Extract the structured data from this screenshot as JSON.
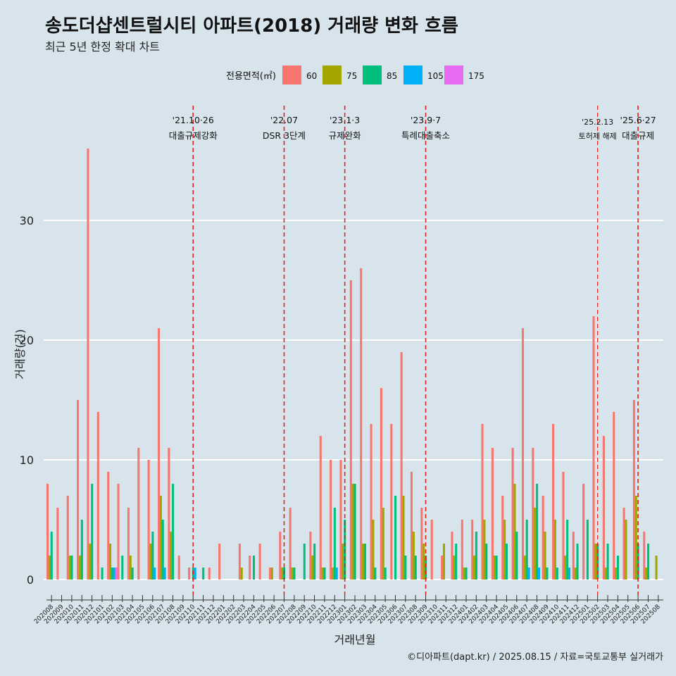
{
  "chart_data": {
    "type": "bar",
    "title": "송도더샵센트럴시티 아파트(2018) 거래량 변화 흐름",
    "subtitle": "최근 5년 한정 확대 차트",
    "xlabel": "거래년월",
    "ylabel": "거래량(건)",
    "caption": "©디아파트(dapt.kr) / 2025.08.15 / 자료=국토교통부 실거래가",
    "ylim": [
      -1.8,
      40
    ],
    "yticks": [
      0,
      10,
      20,
      30
    ],
    "grid": true,
    "legend": {
      "title": "전용면적(㎡)",
      "position": "top"
    },
    "series": [
      {
        "name": "60",
        "color": "#F8766D"
      },
      {
        "name": "75",
        "color": "#A3A500"
      },
      {
        "name": "85",
        "color": "#00BF7D"
      },
      {
        "name": "105",
        "color": "#00B0F6"
      },
      {
        "name": "175",
        "color": "#E76BF3"
      }
    ],
    "months": [
      {
        "m": "202008",
        "v": [
          8,
          2,
          4,
          0,
          0
        ]
      },
      {
        "m": "202009",
        "v": [
          6,
          0,
          0,
          0,
          0
        ]
      },
      {
        "m": "202010",
        "v": [
          7,
          2,
          2,
          0,
          0
        ]
      },
      {
        "m": "202011",
        "v": [
          15,
          2,
          5,
          0,
          0
        ]
      },
      {
        "m": "202012",
        "v": [
          36,
          3,
          8,
          0,
          0
        ]
      },
      {
        "m": "202101",
        "v": [
          14,
          0,
          1,
          0,
          0
        ]
      },
      {
        "m": "202102",
        "v": [
          9,
          3,
          1,
          1,
          1
        ]
      },
      {
        "m": "202103",
        "v": [
          8,
          0,
          2,
          0,
          0
        ]
      },
      {
        "m": "202104",
        "v": [
          6,
          2,
          1,
          0,
          0
        ]
      },
      {
        "m": "202105",
        "v": [
          11,
          0,
          0,
          0,
          0
        ]
      },
      {
        "m": "202106",
        "v": [
          10,
          3,
          4,
          1,
          0
        ]
      },
      {
        "m": "202107",
        "v": [
          21,
          7,
          5,
          1,
          0
        ]
      },
      {
        "m": "202108",
        "v": [
          11,
          4,
          8,
          0,
          0
        ]
      },
      {
        "m": "202109",
        "v": [
          2,
          0,
          0,
          0,
          0
        ]
      },
      {
        "m": "202110",
        "v": [
          1,
          0,
          1,
          1,
          0
        ]
      },
      {
        "m": "202111",
        "v": [
          0,
          0,
          1,
          0,
          0
        ]
      },
      {
        "m": "202112",
        "v": [
          1,
          0,
          0,
          0,
          0
        ]
      },
      {
        "m": "202201",
        "v": [
          3,
          0,
          0,
          0,
          0
        ]
      },
      {
        "m": "202202",
        "v": [
          0,
          0,
          0,
          0,
          0
        ]
      },
      {
        "m": "202203",
        "v": [
          3,
          1,
          0,
          0,
          0
        ]
      },
      {
        "m": "202204",
        "v": [
          2,
          0,
          2,
          0,
          0
        ]
      },
      {
        "m": "202205",
        "v": [
          3,
          0,
          0,
          0,
          0
        ]
      },
      {
        "m": "202206",
        "v": [
          1,
          1,
          0,
          0,
          0
        ]
      },
      {
        "m": "202207",
        "v": [
          4,
          1,
          1,
          0,
          0
        ]
      },
      {
        "m": "202208",
        "v": [
          6,
          1,
          1,
          0,
          0
        ]
      },
      {
        "m": "202209",
        "v": [
          0,
          0,
          3,
          0,
          0
        ]
      },
      {
        "m": "202210",
        "v": [
          4,
          2,
          3,
          0,
          0
        ]
      },
      {
        "m": "202211",
        "v": [
          12,
          1,
          1,
          0,
          0
        ]
      },
      {
        "m": "202212",
        "v": [
          10,
          1,
          6,
          1,
          0
        ]
      },
      {
        "m": "202301",
        "v": [
          10,
          3,
          5,
          0,
          0
        ]
      },
      {
        "m": "202302",
        "v": [
          25,
          8,
          8,
          0,
          0
        ]
      },
      {
        "m": "202303",
        "v": [
          26,
          3,
          3,
          0,
          0
        ]
      },
      {
        "m": "202304",
        "v": [
          13,
          5,
          1,
          0,
          0
        ]
      },
      {
        "m": "202305",
        "v": [
          16,
          6,
          1,
          0,
          0
        ]
      },
      {
        "m": "202306",
        "v": [
          13,
          0,
          7,
          0,
          0
        ]
      },
      {
        "m": "202307",
        "v": [
          19,
          7,
          2,
          0,
          0
        ]
      },
      {
        "m": "202308",
        "v": [
          9,
          4,
          2,
          0,
          0
        ]
      },
      {
        "m": "202309",
        "v": [
          6,
          3,
          2,
          0,
          0
        ]
      },
      {
        "m": "202310",
        "v": [
          5,
          0,
          0,
          0,
          0
        ]
      },
      {
        "m": "202311",
        "v": [
          2,
          3,
          0,
          0,
          0
        ]
      },
      {
        "m": "202312",
        "v": [
          4,
          2,
          3,
          0,
          0
        ]
      },
      {
        "m": "202401",
        "v": [
          5,
          1,
          1,
          0,
          0
        ]
      },
      {
        "m": "202402",
        "v": [
          5,
          2,
          4,
          0,
          0
        ]
      },
      {
        "m": "202403",
        "v": [
          13,
          5,
          3,
          0,
          0
        ]
      },
      {
        "m": "202404",
        "v": [
          11,
          2,
          2,
          0,
          0
        ]
      },
      {
        "m": "202405",
        "v": [
          7,
          5,
          3,
          0,
          0
        ]
      },
      {
        "m": "202406",
        "v": [
          11,
          8,
          4,
          0,
          0
        ]
      },
      {
        "m": "202407",
        "v": [
          21,
          2,
          5,
          1,
          0
        ]
      },
      {
        "m": "202408",
        "v": [
          11,
          6,
          8,
          1,
          0
        ]
      },
      {
        "m": "202409",
        "v": [
          7,
          4,
          1,
          0,
          0
        ]
      },
      {
        "m": "202410",
        "v": [
          13,
          5,
          1,
          0,
          0
        ]
      },
      {
        "m": "202411",
        "v": [
          9,
          2,
          5,
          1,
          0
        ]
      },
      {
        "m": "202412",
        "v": [
          4,
          1,
          3,
          0,
          0
        ]
      },
      {
        "m": "202501",
        "v": [
          8,
          0,
          5,
          0,
          0
        ]
      },
      {
        "m": "202502",
        "v": [
          22,
          3,
          3,
          0,
          0
        ]
      },
      {
        "m": "202503",
        "v": [
          12,
          1,
          3,
          0,
          0
        ]
      },
      {
        "m": "202504",
        "v": [
          14,
          1,
          2,
          0,
          0
        ]
      },
      {
        "m": "202505",
        "v": [
          6,
          5,
          0,
          0,
          0
        ]
      },
      {
        "m": "202506",
        "v": [
          15,
          7,
          3,
          0,
          0
        ]
      },
      {
        "m": "202507",
        "v": [
          4,
          1,
          3,
          0,
          0
        ]
      },
      {
        "m": "202508",
        "v": [
          0,
          2,
          0,
          0,
          0
        ]
      }
    ],
    "events": [
      {
        "at": "202110",
        "date": "'21.10·26",
        "label": "대출규제강화"
      },
      {
        "at": "202207",
        "date": "'22.07",
        "label": "DSR 3단계"
      },
      {
        "at": "202301",
        "date": "'23.1·3",
        "label": "규제완화"
      },
      {
        "at": "202309",
        "date": "'23.9·7",
        "label": "특례대출축소"
      },
      {
        "at": "202502",
        "date": "'25.2.13",
        "label": "토허제 해제",
        "small": true
      },
      {
        "at": "202506",
        "date": "'25.6·27",
        "label": "대출규제"
      }
    ]
  }
}
